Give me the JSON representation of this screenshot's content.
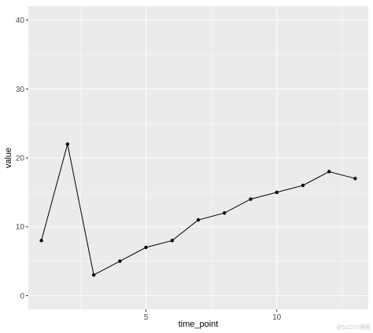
{
  "chart_data": {
    "type": "line",
    "title": "",
    "xlabel": "time_point",
    "ylabel": "value",
    "x": [
      1,
      2,
      3,
      4,
      5,
      6,
      7,
      8,
      9,
      10,
      11,
      12,
      13
    ],
    "series": [
      {
        "values": [
          8,
          22,
          3,
          5,
          7,
          8,
          11,
          12,
          14,
          15,
          16,
          18,
          17
        ]
      }
    ],
    "xlim": [
      0.5,
      13.5
    ],
    "ylim": [
      -2,
      42
    ],
    "x_ticks": [
      5,
      10
    ],
    "x_tick_labels": [
      "5",
      "10"
    ],
    "y_ticks": [
      0,
      10,
      20,
      30,
      40
    ],
    "y_tick_labels": [
      "0",
      "10",
      "20",
      "30",
      "40"
    ],
    "grid": true,
    "panel_background": "#ebebeb",
    "grid_major_color": "#ffffff",
    "line_color": "#000000",
    "point_color": "#000000"
  },
  "watermark": "@51CTO博客"
}
